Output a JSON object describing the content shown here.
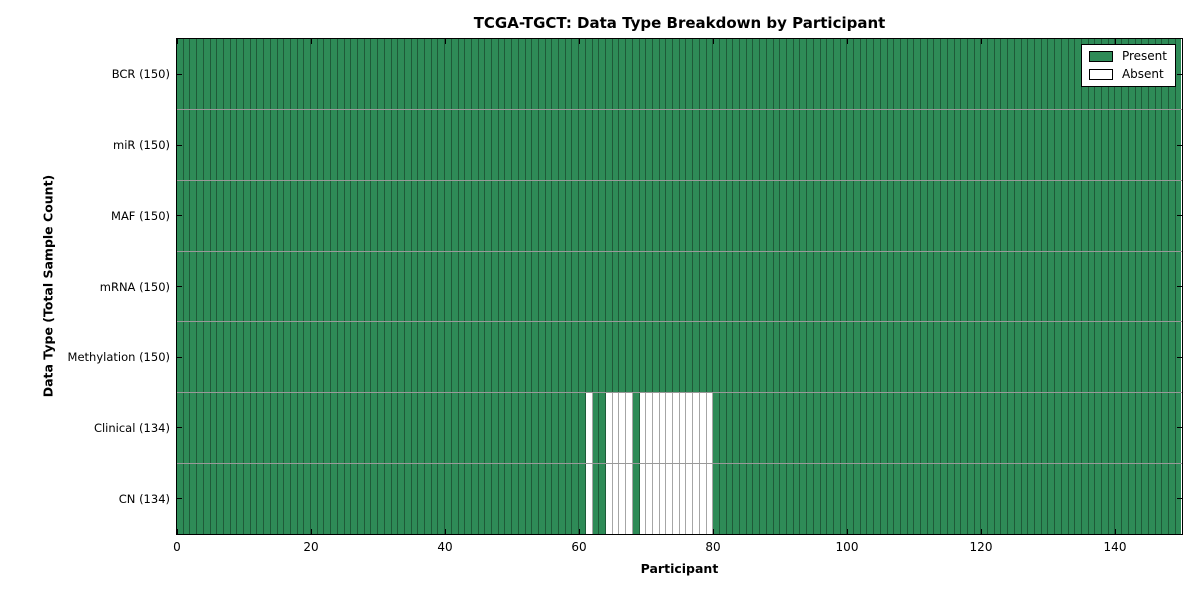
{
  "chart_data": {
    "type": "heatmap",
    "title": "TCGA-TGCT: Data Type Breakdown by Participant",
    "xlabel": "Participant",
    "ylabel": "Data Type (Total Sample Count)",
    "x_range": [
      0,
      150
    ],
    "x_ticks": [
      0,
      20,
      40,
      60,
      80,
      100,
      120,
      140
    ],
    "n_participants": 150,
    "rows": [
      {
        "name": "BCR",
        "label": "BCR (150)",
        "present_count": 150,
        "absent_participants": []
      },
      {
        "name": "miR",
        "label": "miR (150)",
        "present_count": 150,
        "absent_participants": []
      },
      {
        "name": "MAF",
        "label": "MAF (150)",
        "present_count": 150,
        "absent_participants": []
      },
      {
        "name": "mRNA",
        "label": "mRNA (150)",
        "present_count": 150,
        "absent_participants": []
      },
      {
        "name": "Methylation",
        "label": "Methylation (150)",
        "present_count": 150,
        "absent_participants": []
      },
      {
        "name": "Clinical",
        "label": "Clinical (134)",
        "present_count": 134,
        "absent_participants": [
          61,
          64,
          65,
          66,
          67,
          69,
          70,
          71,
          72,
          73,
          74,
          75,
          76,
          77,
          78,
          79
        ]
      },
      {
        "name": "CN",
        "label": "CN (134)",
        "present_count": 134,
        "absent_participants": [
          61,
          64,
          65,
          66,
          67,
          69,
          70,
          71,
          72,
          73,
          74,
          75,
          76,
          77,
          78,
          79
        ]
      }
    ],
    "legend": [
      {
        "name": "present",
        "label": "Present",
        "color": "#2E8B57"
      },
      {
        "name": "absent",
        "label": "Absent",
        "color": "#FFFFFF"
      }
    ],
    "colors": {
      "present": "#2E8B57",
      "absent": "#FFFFFF",
      "grid_line": "rgba(0,0,0,0.35)"
    },
    "legend_position": "upper right",
    "grid": true
  }
}
